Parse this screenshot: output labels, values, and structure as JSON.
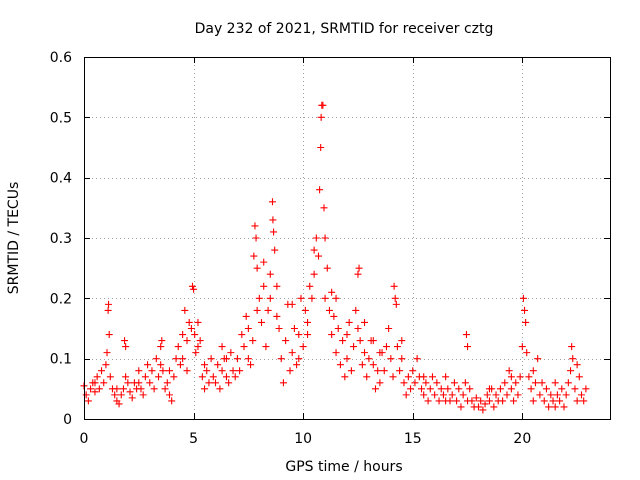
{
  "chart_data": {
    "type": "scatter",
    "title": "Day 232 of 2021, SRMTID for receiver cztg",
    "xlabel": "GPS time / hours",
    "ylabel": "SRMTID / TECUs",
    "xlim": [
      0,
      24
    ],
    "ylim": [
      0,
      0.6
    ],
    "xticks": [
      0,
      5,
      10,
      15,
      20
    ],
    "yticks": [
      0,
      0.1,
      0.2,
      0.3,
      0.4,
      0.5,
      0.6
    ],
    "xtick_labels": [
      "0",
      "5",
      "10",
      "15",
      "20"
    ],
    "ytick_labels": [
      "0",
      "0.1",
      "0.2",
      "0.3",
      "0.4",
      "0.5",
      "0.6"
    ],
    "grid": true,
    "marker": "+",
    "series": [
      {
        "name": "SRMTID",
        "color": "#ff0000",
        "points": [
          [
            0.0,
            0.055
          ],
          [
            0.1,
            0.04
          ],
          [
            0.2,
            0.03
          ],
          [
            0.3,
            0.05
          ],
          [
            0.4,
            0.06
          ],
          [
            0.5,
            0.045
          ],
          [
            0.6,
            0.07
          ],
          [
            0.7,
            0.05
          ],
          [
            0.8,
            0.08
          ],
          [
            0.9,
            0.06
          ],
          [
            1.0,
            0.09
          ],
          [
            1.05,
            0.11
          ],
          [
            1.1,
            0.18
          ],
          [
            1.12,
            0.19
          ],
          [
            1.15,
            0.14
          ],
          [
            1.2,
            0.07
          ],
          [
            1.3,
            0.05
          ],
          [
            1.4,
            0.04
          ],
          [
            1.5,
            0.03
          ],
          [
            1.6,
            0.025
          ],
          [
            1.7,
            0.04
          ],
          [
            1.8,
            0.05
          ],
          [
            1.9,
            0.07
          ],
          [
            1.85,
            0.13
          ],
          [
            1.9,
            0.12
          ],
          [
            2.0,
            0.06
          ],
          [
            2.1,
            0.045
          ],
          [
            2.2,
            0.035
          ],
          [
            2.3,
            0.06
          ],
          [
            2.4,
            0.05
          ],
          [
            2.5,
            0.08
          ],
          [
            2.6,
            0.05
          ],
          [
            2.7,
            0.04
          ],
          [
            2.8,
            0.07
          ],
          [
            2.9,
            0.09
          ],
          [
            3.0,
            0.06
          ],
          [
            3.1,
            0.08
          ],
          [
            3.2,
            0.05
          ],
          [
            3.3,
            0.1
          ],
          [
            3.4,
            0.07
          ],
          [
            3.5,
            0.12
          ],
          [
            3.55,
            0.13
          ],
          [
            3.6,
            0.08
          ],
          [
            3.7,
            0.05
          ],
          [
            3.8,
            0.06
          ],
          [
            3.9,
            0.04
          ],
          [
            4.0,
            0.03
          ],
          [
            4.1,
            0.07
          ],
          [
            4.2,
            0.1
          ],
          [
            4.3,
            0.12
          ],
          [
            4.4,
            0.09
          ],
          [
            4.5,
            0.14
          ],
          [
            4.6,
            0.18
          ],
          [
            4.7,
            0.13
          ],
          [
            4.8,
            0.16
          ],
          [
            4.9,
            0.15
          ],
          [
            4.95,
            0.22
          ],
          [
            5.0,
            0.215
          ],
          [
            5.05,
            0.14
          ],
          [
            5.1,
            0.11
          ],
          [
            5.2,
            0.16
          ],
          [
            5.3,
            0.13
          ],
          [
            5.4,
            0.07
          ],
          [
            5.5,
            0.05
          ],
          [
            5.6,
            0.08
          ],
          [
            5.7,
            0.06
          ],
          [
            5.8,
            0.1
          ],
          [
            5.9,
            0.07
          ],
          [
            6.0,
            0.06
          ],
          [
            6.1,
            0.09
          ],
          [
            6.2,
            0.05
          ],
          [
            6.3,
            0.08
          ],
          [
            6.4,
            0.1
          ],
          [
            6.5,
            0.07
          ],
          [
            6.6,
            0.06
          ],
          [
            6.7,
            0.11
          ],
          [
            6.8,
            0.08
          ],
          [
            6.9,
            0.07
          ],
          [
            7.0,
            0.1
          ],
          [
            7.1,
            0.08
          ],
          [
            7.2,
            0.14
          ],
          [
            7.3,
            0.12
          ],
          [
            7.4,
            0.17
          ],
          [
            7.5,
            0.15
          ],
          [
            7.6,
            0.09
          ],
          [
            7.7,
            0.13
          ],
          [
            7.75,
            0.27
          ],
          [
            7.8,
            0.32
          ],
          [
            7.85,
            0.3
          ],
          [
            7.9,
            0.25
          ],
          [
            8.0,
            0.2
          ],
          [
            8.1,
            0.16
          ],
          [
            8.2,
            0.22
          ],
          [
            8.3,
            0.12
          ],
          [
            8.4,
            0.18
          ],
          [
            8.5,
            0.24
          ],
          [
            8.6,
            0.36
          ],
          [
            8.62,
            0.33
          ],
          [
            8.65,
            0.31
          ],
          [
            8.7,
            0.28
          ],
          [
            8.8,
            0.22
          ],
          [
            8.9,
            0.15
          ],
          [
            9.0,
            0.1
          ],
          [
            9.1,
            0.06
          ],
          [
            9.2,
            0.13
          ],
          [
            9.3,
            0.19
          ],
          [
            9.4,
            0.08
          ],
          [
            9.5,
            0.11
          ],
          [
            9.6,
            0.15
          ],
          [
            9.7,
            0.09
          ],
          [
            9.8,
            0.14
          ],
          [
            9.9,
            0.2
          ],
          [
            10.0,
            0.12
          ],
          [
            10.1,
            0.18
          ],
          [
            10.2,
            0.16
          ],
          [
            10.3,
            0.22
          ],
          [
            10.4,
            0.2
          ],
          [
            10.5,
            0.28
          ],
          [
            10.6,
            0.3
          ],
          [
            10.7,
            0.27
          ],
          [
            10.75,
            0.38
          ],
          [
            10.8,
            0.45
          ],
          [
            10.82,
            0.5
          ],
          [
            10.85,
            0.52
          ],
          [
            10.9,
            0.52
          ],
          [
            10.95,
            0.35
          ],
          [
            11.0,
            0.3
          ],
          [
            11.1,
            0.25
          ],
          [
            11.2,
            0.18
          ],
          [
            11.3,
            0.14
          ],
          [
            11.4,
            0.17
          ],
          [
            11.5,
            0.11
          ],
          [
            11.6,
            0.15
          ],
          [
            11.7,
            0.09
          ],
          [
            11.8,
            0.13
          ],
          [
            11.9,
            0.07
          ],
          [
            12.0,
            0.1
          ],
          [
            12.1,
            0.16
          ],
          [
            12.2,
            0.08
          ],
          [
            12.3,
            0.12
          ],
          [
            12.4,
            0.18
          ],
          [
            12.5,
            0.24
          ],
          [
            12.55,
            0.25
          ],
          [
            12.6,
            0.13
          ],
          [
            12.7,
            0.09
          ],
          [
            12.8,
            0.11
          ],
          [
            12.9,
            0.07
          ],
          [
            13.0,
            0.1
          ],
          [
            13.1,
            0.13
          ],
          [
            13.2,
            0.09
          ],
          [
            13.3,
            0.05
          ],
          [
            13.4,
            0.08
          ],
          [
            13.5,
            0.06
          ],
          [
            13.6,
            0.11
          ],
          [
            13.7,
            0.08
          ],
          [
            13.8,
            0.12
          ],
          [
            13.9,
            0.15
          ],
          [
            14.0,
            0.1
          ],
          [
            14.1,
            0.07
          ],
          [
            14.15,
            0.22
          ],
          [
            14.2,
            0.2
          ],
          [
            14.25,
            0.19
          ],
          [
            14.3,
            0.12
          ],
          [
            14.4,
            0.08
          ],
          [
            14.5,
            0.1
          ],
          [
            14.6,
            0.06
          ],
          [
            14.7,
            0.04
          ],
          [
            14.8,
            0.07
          ],
          [
            14.9,
            0.05
          ],
          [
            15.0,
            0.08
          ],
          [
            15.1,
            0.06
          ],
          [
            15.2,
            0.1
          ],
          [
            15.3,
            0.07
          ],
          [
            15.4,
            0.05
          ],
          [
            15.5,
            0.04
          ],
          [
            15.6,
            0.06
          ],
          [
            15.7,
            0.03
          ],
          [
            15.8,
            0.05
          ],
          [
            15.9,
            0.07
          ],
          [
            16.0,
            0.04
          ],
          [
            16.1,
            0.06
          ],
          [
            16.2,
            0.03
          ],
          [
            16.3,
            0.05
          ],
          [
            16.4,
            0.04
          ],
          [
            16.5,
            0.07
          ],
          [
            16.6,
            0.05
          ],
          [
            16.7,
            0.03
          ],
          [
            16.8,
            0.04
          ],
          [
            16.9,
            0.06
          ],
          [
            17.0,
            0.03
          ],
          [
            17.1,
            0.05
          ],
          [
            17.2,
            0.02
          ],
          [
            17.3,
            0.04
          ],
          [
            17.4,
            0.06
          ],
          [
            17.45,
            0.14
          ],
          [
            17.5,
            0.12
          ],
          [
            17.6,
            0.05
          ],
          [
            17.7,
            0.03
          ],
          [
            17.8,
            0.02
          ],
          [
            17.9,
            0.035
          ],
          [
            18.0,
            0.02
          ],
          [
            18.1,
            0.03
          ],
          [
            18.2,
            0.015
          ],
          [
            18.3,
            0.025
          ],
          [
            18.4,
            0.04
          ],
          [
            18.5,
            0.03
          ],
          [
            18.6,
            0.05
          ],
          [
            18.7,
            0.02
          ],
          [
            18.8,
            0.04
          ],
          [
            18.9,
            0.03
          ],
          [
            19.0,
            0.05
          ],
          [
            19.1,
            0.03
          ],
          [
            19.2,
            0.06
          ],
          [
            19.3,
            0.04
          ],
          [
            19.4,
            0.08
          ],
          [
            19.5,
            0.05
          ],
          [
            19.6,
            0.03
          ],
          [
            19.7,
            0.06
          ],
          [
            19.8,
            0.04
          ],
          [
            19.9,
            0.07
          ],
          [
            20.0,
            0.12
          ],
          [
            20.05,
            0.2
          ],
          [
            20.1,
            0.18
          ],
          [
            20.15,
            0.16
          ],
          [
            20.2,
            0.11
          ],
          [
            20.3,
            0.07
          ],
          [
            20.4,
            0.05
          ],
          [
            20.5,
            0.08
          ],
          [
            20.6,
            0.06
          ],
          [
            20.7,
            0.1
          ],
          [
            20.8,
            0.04
          ],
          [
            20.9,
            0.06
          ],
          [
            21.0,
            0.03
          ],
          [
            21.1,
            0.05
          ],
          [
            21.2,
            0.02
          ],
          [
            21.3,
            0.04
          ],
          [
            21.4,
            0.03
          ],
          [
            21.5,
            0.02
          ],
          [
            21.6,
            0.04
          ],
          [
            21.7,
            0.03
          ],
          [
            21.8,
            0.05
          ],
          [
            21.9,
            0.02
          ],
          [
            22.0,
            0.04
          ],
          [
            22.1,
            0.06
          ],
          [
            22.2,
            0.08
          ],
          [
            22.25,
            0.12
          ],
          [
            22.3,
            0.1
          ],
          [
            22.4,
            0.05
          ],
          [
            22.5,
            0.03
          ],
          [
            22.6,
            0.07
          ],
          [
            22.7,
            0.04
          ],
          [
            22.8,
            0.03
          ],
          [
            22.9,
            0.05
          ],
          [
            22.5,
            0.09
          ],
          [
            21.5,
            0.06
          ],
          [
            20.5,
            0.03
          ],
          [
            19.5,
            0.07
          ],
          [
            18.5,
            0.05
          ],
          [
            17.5,
            0.03
          ],
          [
            16.5,
            0.03
          ],
          [
            15.5,
            0.07
          ],
          [
            14.5,
            0.13
          ],
          [
            13.5,
            0.11
          ],
          [
            12.5,
            0.15
          ],
          [
            11.5,
            0.2
          ],
          [
            10.5,
            0.24
          ],
          [
            9.5,
            0.19
          ],
          [
            8.5,
            0.2
          ],
          [
            7.5,
            0.1
          ],
          [
            6.5,
            0.1
          ],
          [
            5.5,
            0.09
          ],
          [
            4.5,
            0.1
          ],
          [
            3.5,
            0.09
          ],
          [
            2.5,
            0.06
          ],
          [
            1.5,
            0.05
          ],
          [
            0.5,
            0.06
          ],
          [
            11.0,
            0.2
          ],
          [
            10.2,
            0.14
          ],
          [
            9.8,
            0.1
          ],
          [
            8.8,
            0.17
          ],
          [
            8.2,
            0.26
          ],
          [
            7.9,
            0.18
          ],
          [
            11.3,
            0.21
          ],
          [
            12.0,
            0.14
          ],
          [
            12.8,
            0.16
          ],
          [
            13.2,
            0.13
          ],
          [
            6.3,
            0.12
          ],
          [
            5.2,
            0.12
          ],
          [
            4.7,
            0.08
          ],
          [
            3.9,
            0.08
          ]
        ]
      }
    ]
  }
}
